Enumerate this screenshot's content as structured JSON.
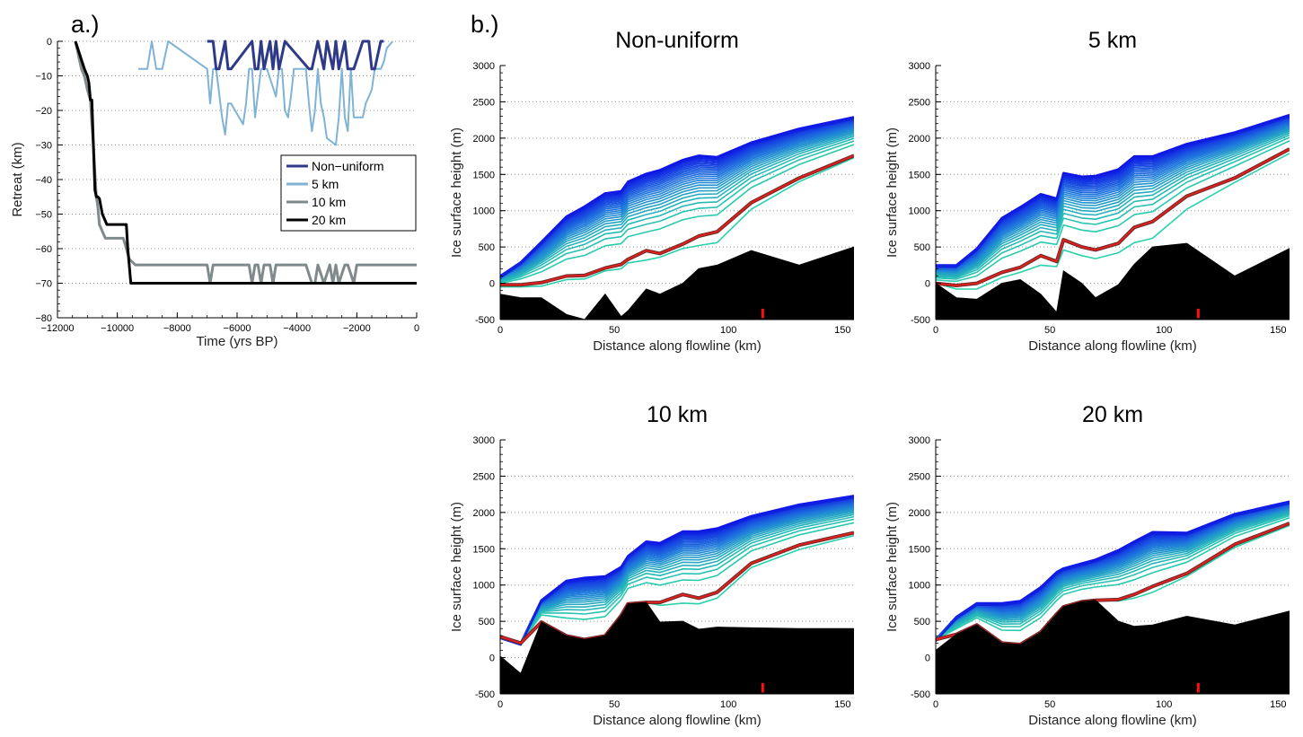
{
  "labels": {
    "a": "a.)",
    "b": "b.)"
  },
  "chart_data": [
    {
      "id": "a",
      "type": "line",
      "title": "",
      "xlabel": "Time (yrs BP)",
      "ylabel": "Retreat (km)",
      "xlim": [
        -12000,
        0
      ],
      "ylim": [
        -80,
        0
      ],
      "xticks": [
        -12000,
        -10000,
        -8000,
        -6000,
        -4000,
        -2000,
        0
      ],
      "xticklabels": [
        "−12000",
        "−10000",
        "−8000",
        "−6000",
        "−4000",
        "−2000",
        "0"
      ],
      "yticks": [
        -80,
        -70,
        -60,
        -50,
        -40,
        -30,
        -20,
        -10,
        0
      ],
      "yticklabels": [
        "−80",
        "−70",
        "−60",
        "−50",
        "−40",
        "−30",
        "−20",
        "−10",
        "0"
      ],
      "grid": "dotted",
      "legend_position": "right",
      "series": [
        {
          "name": "Non−uniform",
          "color": "#2e3a87",
          "width": 3,
          "x": [
            -7000,
            -6800,
            -6700,
            -6600,
            -6400,
            -6300,
            -6200,
            -5500,
            -5400,
            -5300,
            -5200,
            -5100,
            -4900,
            -4800,
            -4700,
            -4600,
            -4400,
            -3600,
            -3500,
            -3300,
            -3100,
            -3000,
            -2800,
            -2700,
            -2600,
            -2400,
            -2300,
            -2100,
            -1800,
            -1600,
            -1500,
            -1400,
            -1200,
            -1100
          ],
          "y": [
            0,
            0,
            -8,
            -8,
            0,
            -8,
            -8,
            0,
            -8,
            -8,
            0,
            -8,
            0,
            -8,
            0,
            -8,
            0,
            -8,
            -8,
            0,
            -8,
            0,
            -8,
            0,
            -8,
            0,
            -8,
            -8,
            0,
            0,
            -8,
            -8,
            0,
            0
          ]
        },
        {
          "name": "5 km",
          "color": "#7fb3d5",
          "width": 2,
          "x": [
            -9300,
            -9000,
            -8850,
            -8700,
            -8500,
            -8300,
            -7000,
            -6900,
            -6800,
            -6700,
            -6500,
            -6400,
            -6300,
            -6200,
            -5800,
            -5700,
            -5600,
            -5500,
            -5400,
            -5200,
            -5100,
            -5000,
            -4700,
            -4600,
            -4500,
            -4400,
            -4300,
            -4200,
            -4100,
            -3700,
            -3600,
            -3500,
            -3400,
            -3300,
            -3200,
            -3100,
            -3000,
            -2700,
            -2600,
            -2500,
            -2400,
            -2300,
            -2200,
            -2100,
            -1800,
            -1700,
            -1600,
            -1500,
            -1400,
            -1300,
            -1200,
            -1100,
            -1000,
            -800
          ],
          "y": [
            -8,
            -8,
            0,
            -8,
            -8,
            0,
            -8,
            -18,
            -8,
            -8,
            -22,
            -27,
            -18,
            -18,
            -24,
            -18,
            -8,
            -8,
            -22,
            -8,
            -8,
            -8,
            -16,
            -8,
            -8,
            -20,
            -22,
            -16,
            -8,
            -8,
            -18,
            -26,
            -20,
            -8,
            -18,
            -22,
            -28,
            -30,
            -22,
            -8,
            -22,
            -26,
            -8,
            -22,
            -22,
            -18,
            -16,
            -14,
            -8,
            -8,
            -8,
            -6,
            -2,
            0
          ]
        },
        {
          "name": "10 km",
          "color": "#808a8c",
          "width": 3,
          "x": [
            -11400,
            -11200,
            -11100,
            -11000,
            -10900,
            -10850,
            -10800,
            -10750,
            -10700,
            -10650,
            -10600,
            -10500,
            -10400,
            -10300,
            -10000,
            -9800,
            -9700,
            -9600,
            -9400,
            -7000,
            -6900,
            -6800,
            -6700,
            -6500,
            -5800,
            -5700,
            -5600,
            -5500,
            -5400,
            -5300,
            -5200,
            -5100,
            -4900,
            -4800,
            -4700,
            -4600,
            -4400,
            -3700,
            -3500,
            -3400,
            -3300,
            -3100,
            -2900,
            -2800,
            -2700,
            -2600,
            -2400,
            -2300,
            -2100,
            -2000,
            -1800,
            -1500,
            -1000,
            0
          ],
          "y": [
            0,
            -8,
            -10,
            -14,
            -17,
            -24,
            -30,
            -38,
            -45,
            -48,
            -53,
            -55,
            -57,
            -57,
            -57,
            -57,
            -60,
            -63,
            -64.7,
            -64.7,
            -70,
            -64.7,
            -64.7,
            -64.7,
            -64.7,
            -64.7,
            -64.7,
            -70,
            -64.7,
            -64.7,
            -70,
            -64.7,
            -64.7,
            -70,
            -64.7,
            -64.7,
            -64.7,
            -64.7,
            -70,
            -70,
            -64.7,
            -70,
            -64.7,
            -70,
            -64.7,
            -70,
            -64.7,
            -64.7,
            -70,
            -64.7,
            -64.7,
            -64.7,
            -64.7,
            -64.7
          ]
        },
        {
          "name": "20 km",
          "color": "#000000",
          "width": 3,
          "x": [
            -11400,
            -11100,
            -11000,
            -10950,
            -10900,
            -10850,
            -10800,
            -10750,
            -10700,
            -10650,
            -10600,
            -10500,
            -10350,
            -10000,
            -9800,
            -9700,
            -9650,
            -9550,
            -8000,
            -5000,
            -2000,
            0
          ],
          "y": [
            0,
            -8,
            -10,
            -12,
            -17,
            -17,
            -30,
            -43,
            -45,
            -45,
            -45.5,
            -50,
            -53,
            -53,
            -53,
            -53,
            -60,
            -70,
            -70,
            -70,
            -70,
            -70
          ]
        }
      ]
    },
    {
      "id": "b1",
      "type": "area",
      "title": "Non-uniform",
      "xlabel": "Distance along flowline (km)",
      "ylabel": "Ice surface height (m)",
      "xlim": [
        0,
        155
      ],
      "ylim": [
        -500,
        3000
      ],
      "xticks": [
        0,
        50,
        100,
        150
      ],
      "yticks": [
        -500,
        0,
        500,
        1000,
        1500,
        2000,
        2500,
        3000
      ],
      "marker_x": 115,
      "x": [
        0,
        9,
        18,
        29,
        37,
        46,
        53,
        56,
        64,
        70,
        80,
        87,
        95,
        110,
        131,
        155
      ],
      "bed": [
        -150,
        -200,
        -200,
        -430,
        -500,
        -150,
        -460,
        -380,
        -80,
        -150,
        0,
        200,
        250,
        450,
        250,
        500
      ],
      "top": [
        100,
        290,
        570,
        920,
        1060,
        1240,
        1270,
        1400,
        1510,
        1560,
        1700,
        1760,
        1740,
        1940,
        2130,
        2290
      ],
      "bottom": [
        -50,
        -50,
        -40,
        50,
        60,
        170,
        200,
        280,
        320,
        360,
        480,
        520,
        560,
        1020,
        1400,
        1730
      ],
      "red": [
        -20,
        -20,
        10,
        100,
        110,
        210,
        260,
        330,
        450,
        410,
        540,
        650,
        710,
        1110,
        1450,
        1760
      ]
    },
    {
      "id": "b2",
      "type": "area",
      "title": "5 km",
      "xlabel": "Distance along flowline (km)",
      "ylabel": "Ice surface height (m)",
      "xlim": [
        0,
        155
      ],
      "ylim": [
        -500,
        3000
      ],
      "xticks": [
        0,
        50,
        100,
        150
      ],
      "yticks": [
        -500,
        0,
        500,
        1000,
        1500,
        2000,
        2500,
        3000
      ],
      "marker_x": 115,
      "x": [
        0,
        9,
        18,
        29,
        37,
        46,
        53,
        56,
        64,
        70,
        80,
        87,
        95,
        110,
        131,
        155
      ],
      "bed": [
        0,
        -200,
        -220,
        0,
        50,
        -150,
        -400,
        170,
        0,
        -200,
        -20,
        260,
        500,
        550,
        100,
        480
      ],
      "top": [
        250,
        250,
        480,
        900,
        1050,
        1230,
        1170,
        1520,
        1470,
        1480,
        1570,
        1750,
        1750,
        1920,
        2080,
        2320
      ],
      "bottom": [
        -50,
        -80,
        -80,
        80,
        150,
        250,
        230,
        460,
        380,
        340,
        420,
        560,
        620,
        1020,
        1390,
        1790
      ],
      "red": [
        0,
        -30,
        0,
        150,
        220,
        380,
        300,
        600,
        500,
        460,
        550,
        770,
        850,
        1200,
        1450,
        1850
      ]
    },
    {
      "id": "b3",
      "type": "area",
      "title": "10 km",
      "xlabel": "Distance along flowline (km)",
      "ylabel": "Ice surface height (m)",
      "xlim": [
        0,
        155
      ],
      "ylim": [
        -500,
        3000
      ],
      "xticks": [
        0,
        50,
        100,
        150
      ],
      "yticks": [
        -500,
        0,
        500,
        1000,
        1500,
        2000,
        2500,
        3000
      ],
      "marker_x": 115,
      "x": [
        0,
        9,
        18,
        29,
        37,
        46,
        53,
        56,
        64,
        70,
        80,
        87,
        95,
        110,
        131,
        155
      ],
      "bed": [
        20,
        -220,
        490,
        300,
        250,
        300,
        580,
        740,
        760,
        490,
        500,
        390,
        420,
        410,
        400,
        400
      ],
      "top": [
        290,
        200,
        790,
        1060,
        1100,
        1120,
        1250,
        1400,
        1600,
        1580,
        1740,
        1740,
        1780,
        1950,
        2110,
        2230
      ],
      "bottom": [
        290,
        200,
        490,
        300,
        250,
        300,
        580,
        740,
        760,
        720,
        750,
        740,
        820,
        1240,
        1490,
        1680
      ],
      "red": [
        290,
        200,
        490,
        300,
        250,
        300,
        580,
        740,
        760,
        760,
        870,
        820,
        900,
        1300,
        1550,
        1720
      ]
    },
    {
      "id": "b4",
      "type": "area",
      "title": "20 km",
      "xlabel": "Distance along flowline (km)",
      "ylabel": "Ice surface height (m)",
      "xlim": [
        0,
        155
      ],
      "ylim": [
        -500,
        3000
      ],
      "xticks": [
        0,
        50,
        100,
        150
      ],
      "yticks": [
        -500,
        0,
        500,
        1000,
        1500,
        2000,
        2500,
        3000
      ],
      "marker_x": 115,
      "x": [
        0,
        9,
        18,
        29,
        37,
        46,
        53,
        56,
        64,
        70,
        80,
        87,
        95,
        110,
        131,
        155
      ],
      "bed": [
        100,
        320,
        450,
        200,
        180,
        350,
        600,
        700,
        770,
        790,
        500,
        430,
        450,
        570,
        450,
        640
      ],
      "top": [
        250,
        560,
        750,
        750,
        780,
        970,
        1180,
        1230,
        1300,
        1350,
        1480,
        1600,
        1730,
        1720,
        1980,
        2150
      ],
      "bottom": [
        250,
        320,
        450,
        200,
        180,
        350,
        600,
        700,
        770,
        790,
        780,
        820,
        900,
        1120,
        1520,
        1820
      ],
      "red": [
        250,
        320,
        450,
        200,
        180,
        350,
        600,
        700,
        770,
        790,
        800,
        870,
        980,
        1160,
        1560,
        1850
      ]
    }
  ]
}
